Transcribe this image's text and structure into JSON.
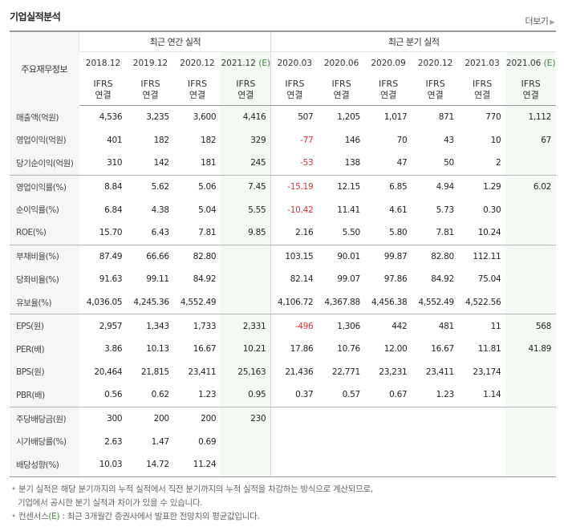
{
  "section_title": "기업실적분석",
  "more_label": "더보기",
  "table": {
    "corner_label": "주요재무정보",
    "annual_header": "최근 연간 실적",
    "quarter_header": "최근 분기 실적",
    "periods": [
      "2018.12",
      "2019.12",
      "2020.12",
      "2021.12",
      "2020.03",
      "2020.06",
      "2020.09",
      "2020.12",
      "2021.03",
      "2021.06"
    ],
    "estimate_mark": "(E)",
    "ifrs_label": "IFRS",
    "basis_label": "연결",
    "rows": [
      {
        "label": "매출액(억원)",
        "values": [
          "4,536",
          "3,235",
          "3,600",
          "4,416",
          "507",
          "1,205",
          "1,017",
          "871",
          "770",
          "1,112"
        ]
      },
      {
        "label": "영업이익(억원)",
        "values": [
          "401",
          "182",
          "182",
          "329",
          "-77",
          "146",
          "70",
          "43",
          "10",
          "67"
        ]
      },
      {
        "label": "당기순이익(억원)",
        "values": [
          "310",
          "142",
          "181",
          "245",
          "-53",
          "138",
          "47",
          "50",
          "2",
          ""
        ]
      },
      {
        "label": "영업이익률(%)",
        "values": [
          "8.84",
          "5.62",
          "5.06",
          "7.45",
          "-15.19",
          "12.15",
          "6.85",
          "4.94",
          "1.29",
          "6.02"
        ]
      },
      {
        "label": "순이익률(%)",
        "values": [
          "6.84",
          "4.38",
          "5.04",
          "5.55",
          "-10.42",
          "11.41",
          "4.61",
          "5.73",
          "0.30",
          ""
        ]
      },
      {
        "label": "ROE(%)",
        "values": [
          "15.70",
          "6.43",
          "7.81",
          "9.85",
          "2.16",
          "5.50",
          "5.80",
          "7.81",
          "10.24",
          ""
        ]
      },
      {
        "label": "부채비율(%)",
        "values": [
          "87.49",
          "66.66",
          "82.80",
          "",
          "103.15",
          "90.01",
          "99.87",
          "82.80",
          "112.11",
          ""
        ]
      },
      {
        "label": "당좌비율(%)",
        "values": [
          "91.63",
          "99.11",
          "84.92",
          "",
          "82.14",
          "99.07",
          "97.86",
          "84.92",
          "75.04",
          ""
        ]
      },
      {
        "label": "유보율(%)",
        "values": [
          "4,036.05",
          "4,245.36",
          "4,552.49",
          "",
          "4,106.72",
          "4,367.88",
          "4,456.38",
          "4,552.49",
          "4,522.56",
          ""
        ]
      },
      {
        "label": "EPS(원)",
        "values": [
          "2,957",
          "1,343",
          "1,733",
          "2,331",
          "-496",
          "1,306",
          "442",
          "481",
          "11",
          "568"
        ]
      },
      {
        "label": "PER(배)",
        "values": [
          "3.86",
          "10.13",
          "16.67",
          "10.21",
          "17.86",
          "10.76",
          "12.00",
          "16.67",
          "11.81",
          "41.89"
        ]
      },
      {
        "label": "BPS(원)",
        "values": [
          "20,464",
          "21,815",
          "23,411",
          "25,163",
          "21,436",
          "22,771",
          "23,231",
          "23,411",
          "23,174",
          ""
        ]
      },
      {
        "label": "PBR(배)",
        "values": [
          "0.56",
          "0.62",
          "1.23",
          "0.95",
          "0.37",
          "0.57",
          "0.67",
          "1.23",
          "1.14",
          ""
        ]
      },
      {
        "label": "주당배당금(원)",
        "values": [
          "300",
          "200",
          "200",
          "230",
          "",
          "",
          "",
          "",
          "",
          ""
        ]
      },
      {
        "label": "시가배당률(%)",
        "values": [
          "2.63",
          "1.47",
          "0.69",
          "",
          "",
          "",
          "",
          "",
          "",
          ""
        ]
      },
      {
        "label": "배당성향(%)",
        "values": [
          "10.03",
          "14.72",
          "11.24",
          "",
          "",
          "",
          "",
          "",
          "",
          ""
        ]
      }
    ]
  },
  "notes": {
    "line1": "분기 실적은 해당 분기까지의 누적 실적에서 직전 분기까지의 누적 실적을 차감하는 방식으로 계산되므로,",
    "line2": "기업에서 공시한 분기 실적과 차이가 있을 수 있습니다.",
    "line3_prefix": "컨센서스",
    "line3_mark": "(E)",
    "line3_rest": " : 최근 3개월간 증권사에서 발표한 전망치의 평균값입니다."
  },
  "colors": {
    "negative": "#e03030",
    "ifrs": "#e0502b",
    "estimate_bg": "#f3f9f3",
    "estimate_mark": "#3a8a3a"
  }
}
